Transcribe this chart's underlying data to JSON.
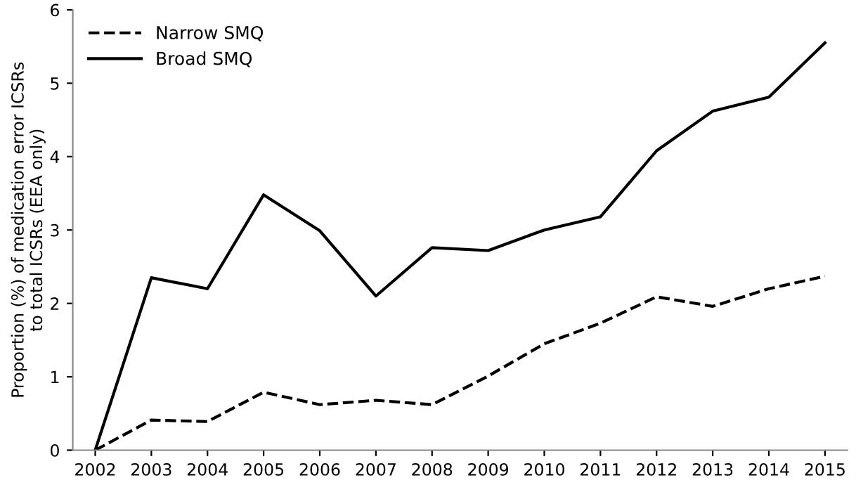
{
  "chart_data": {
    "type": "line",
    "ylabel": "Proportion (%) of medication error ICSRs\nto total ICSRs (EEA only)",
    "categories": [
      "2002",
      "2003",
      "2004",
      "2005",
      "2006",
      "2007",
      "2008",
      "2009",
      "2010",
      "2011",
      "2012",
      "2013",
      "2014",
      "2015"
    ],
    "series": [
      {
        "name": "Narrow SMQ",
        "color": "#000000",
        "line_style": "dashed",
        "values": [
          0,
          0.41,
          0.39,
          0.79,
          0.62,
          0.68,
          0.62,
          1.01,
          1.45,
          1.73,
          2.09,
          1.96,
          2.2,
          2.37
        ]
      },
      {
        "name": "Broad SMQ",
        "color": "#000000",
        "line_style": "solid",
        "values": [
          0,
          2.35,
          2.2,
          3.48,
          2.99,
          2.1,
          2.76,
          2.72,
          3.0,
          3.18,
          4.08,
          4.62,
          4.81,
          5.55
        ]
      }
    ],
    "ylim": [
      0,
      6
    ],
    "yticks": [
      0,
      1,
      2,
      3,
      4,
      5,
      6
    ],
    "grid": false,
    "legend": "top left",
    "marker": "none"
  }
}
